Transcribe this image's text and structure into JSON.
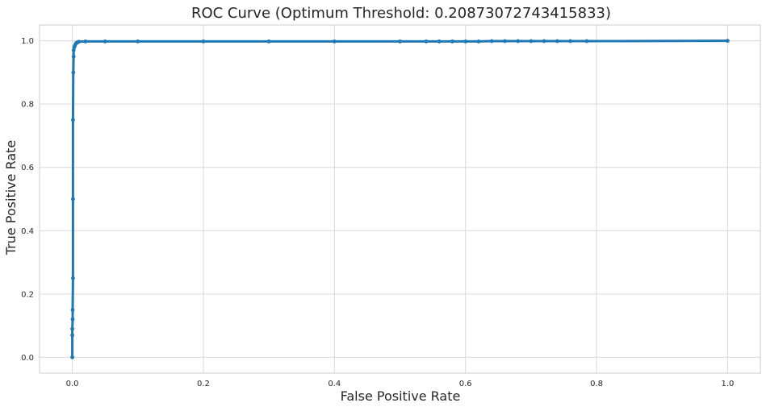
{
  "chart_data": {
    "type": "line",
    "title": "ROC Curve (Optimum Threshold: 0.20873072743415833)",
    "xlabel": "False Positive Rate",
    "ylabel": "True Positive Rate",
    "xlim": [
      -0.05,
      1.05
    ],
    "ylim": [
      -0.05,
      1.05
    ],
    "xticks": [
      0.0,
      0.2,
      0.4,
      0.6,
      0.8,
      1.0
    ],
    "yticks": [
      0.0,
      0.2,
      0.4,
      0.6,
      0.8,
      1.0
    ],
    "xtick_labels": [
      "0.0",
      "0.2",
      "0.4",
      "0.6",
      "0.8",
      "1.0"
    ],
    "ytick_labels": [
      "0.0",
      "0.2",
      "0.4",
      "0.6",
      "0.8",
      "1.0"
    ],
    "grid": true,
    "line_color": "#1f77b4",
    "grid_color": "#d9d9d9",
    "axes_color": "#cccccc",
    "series": [
      {
        "marker": "circle",
        "x": [
          0.0,
          0.0,
          0.0,
          0.0005,
          0.0005,
          0.001,
          0.001,
          0.001,
          0.0015,
          0.002,
          0.002,
          0.003,
          0.004,
          0.005,
          0.006,
          0.008,
          0.01,
          0.02,
          0.05,
          0.1,
          0.2,
          0.3,
          0.4,
          0.5,
          0.54,
          0.56,
          0.58,
          0.6,
          0.62,
          0.64,
          0.66,
          0.68,
          0.7,
          0.72,
          0.74,
          0.76,
          0.785,
          1.0
        ],
        "y": [
          0.0,
          0.07,
          0.09,
          0.12,
          0.15,
          0.25,
          0.5,
          0.75,
          0.9,
          0.95,
          0.97,
          0.98,
          0.985,
          0.99,
          0.993,
          0.995,
          0.997,
          0.998,
          0.998,
          0.998,
          0.998,
          0.998,
          0.998,
          0.998,
          0.998,
          0.998,
          0.998,
          0.998,
          0.998,
          0.999,
          0.999,
          0.999,
          0.999,
          0.999,
          0.999,
          0.999,
          0.999,
          1.0
        ]
      }
    ]
  }
}
